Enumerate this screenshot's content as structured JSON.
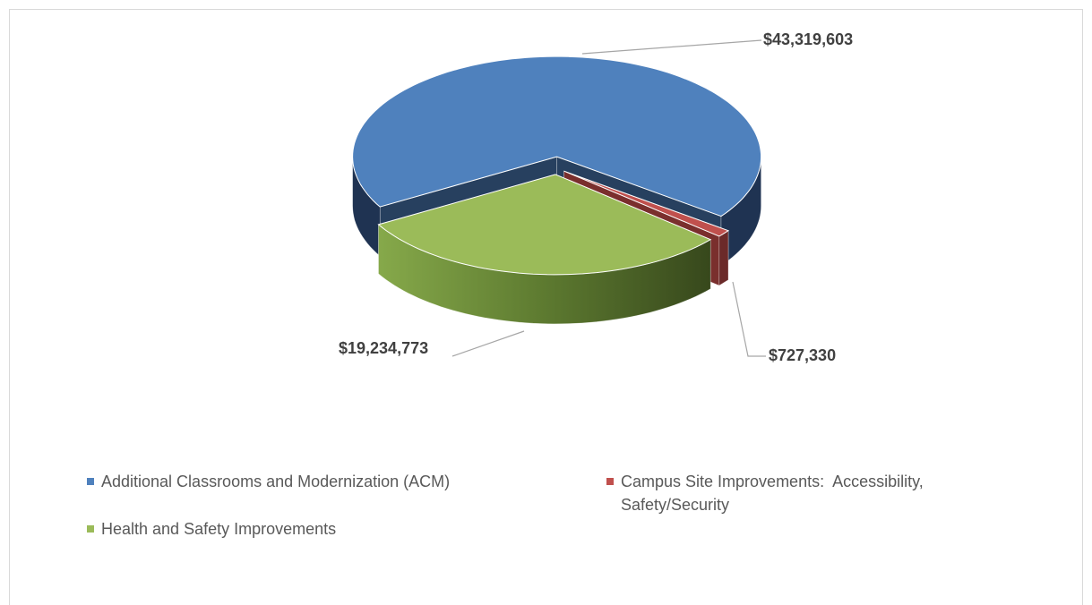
{
  "chart_data": {
    "type": "pie",
    "three_d": true,
    "categories": [
      "Additional Classrooms and Modernization (ACM)",
      "Campus Site Improvements:  Accessibility, Safety/Security",
      "Health and Safety Improvements"
    ],
    "values": [
      43319603,
      727330,
      19234773
    ],
    "value_labels": [
      "$43,319,603",
      "$727,330",
      "$19,234,773"
    ],
    "colors": [
      "#4f81bd",
      "#c0504d",
      "#9bbb59"
    ],
    "legend": "bottom"
  }
}
